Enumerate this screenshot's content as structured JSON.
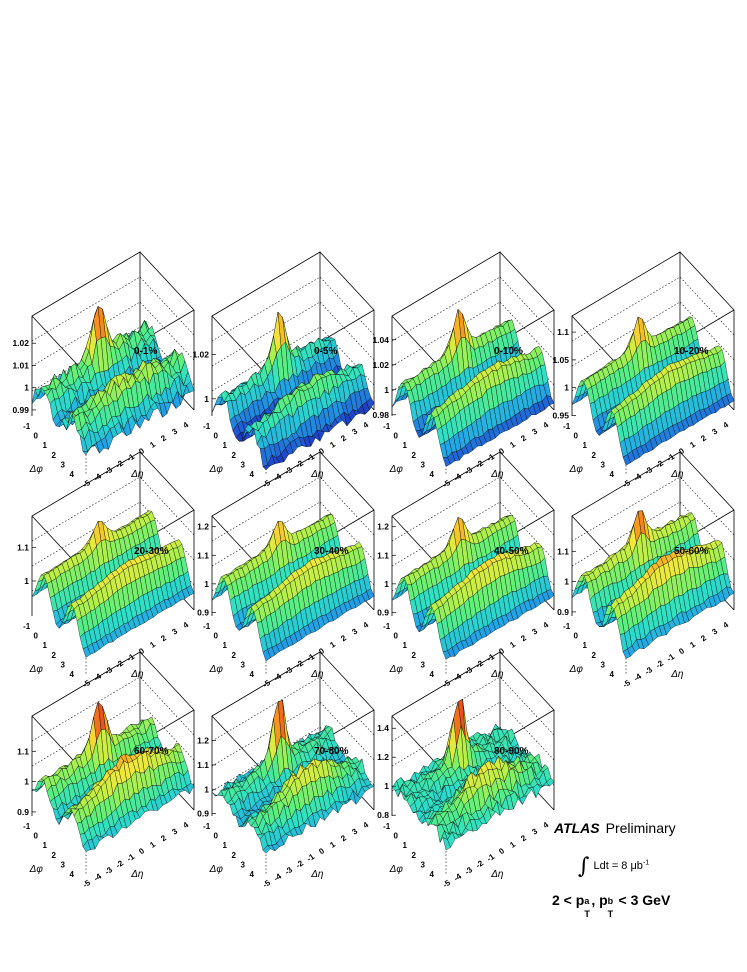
{
  "chart_data": {
    "type": "surface",
    "xlabel": "Δφ",
    "ylabel": "Δη",
    "x_ticks": [
      "-1",
      "0",
      "1",
      "2",
      "3",
      "4"
    ],
    "y_ticks": [
      "-5",
      "-4",
      "-3",
      "-2",
      "-1",
      "0",
      "1",
      "2",
      "3",
      "4"
    ],
    "panels": [
      {
        "label": "0-1%",
        "z_ticks": [
          "0.99",
          "1",
          "1.01",
          "1.02"
        ],
        "zlim": [
          0.985,
          1.03
        ],
        "flow": 0.01,
        "near": 0.022,
        "away": 0.006,
        "noise": 0.003
      },
      {
        "label": "0-5%",
        "z_ticks": [
          "1",
          "1.02"
        ],
        "zlim": [
          0.99,
          1.035
        ],
        "flow": 0.012,
        "near": 0.022,
        "away": 0.006,
        "noise": 0.002
      },
      {
        "label": "0-10%",
        "z_ticks": [
          "0.98",
          "1",
          "1.02",
          "1.04"
        ],
        "zlim": [
          0.975,
          1.055
        ],
        "flow": 0.03,
        "near": 0.03,
        "away": 0.01,
        "noise": 0.0015
      },
      {
        "label": "10-20%",
        "z_ticks": [
          "0.95",
          "1",
          "1.05",
          "1.1"
        ],
        "zlim": [
          0.94,
          1.12
        ],
        "flow": 0.07,
        "near": 0.05,
        "away": 0.02,
        "noise": 0.002
      },
      {
        "label": "20-30%",
        "z_ticks": [
          "1",
          "1.1"
        ],
        "zlim": [
          0.88,
          1.18
        ],
        "flow": 0.11,
        "near": 0.06,
        "away": 0.03,
        "noise": 0.003
      },
      {
        "label": "30-40%",
        "z_ticks": [
          "0.9",
          "1",
          "1.1",
          "1.2"
        ],
        "zlim": [
          0.87,
          1.22
        ],
        "flow": 0.13,
        "near": 0.08,
        "away": 0.04,
        "noise": 0.004
      },
      {
        "label": "40-50%",
        "z_ticks": [
          "0.9",
          "1",
          "1.1",
          "1.2"
        ],
        "zlim": [
          0.87,
          1.22
        ],
        "flow": 0.13,
        "near": 0.09,
        "away": 0.05,
        "noise": 0.005
      },
      {
        "label": "50-60%",
        "z_ticks": [
          "0.9",
          "1",
          "1.1"
        ],
        "zlim": [
          0.87,
          1.2
        ],
        "flow": 0.12,
        "near": 0.1,
        "away": 0.06,
        "noise": 0.007
      },
      {
        "label": "60-70%",
        "z_ticks": [
          "0.9",
          "1",
          "1.1"
        ],
        "zlim": [
          0.87,
          1.2
        ],
        "flow": 0.08,
        "near": 0.15,
        "away": 0.08,
        "noise": 0.012
      },
      {
        "label": "70-80%",
        "z_ticks": [
          "0.9",
          "1",
          "1.1",
          "1.2"
        ],
        "zlim": [
          0.87,
          1.28
        ],
        "flow": 0.05,
        "near": 0.25,
        "away": 0.12,
        "noise": 0.02
      },
      {
        "label": "80-90%",
        "z_ticks": [
          "0.8",
          "1",
          "1.2",
          "1.4"
        ],
        "zlim": [
          0.76,
          1.45
        ],
        "flow": 0.03,
        "near": 0.45,
        "away": 0.2,
        "noise": 0.04
      }
    ]
  },
  "legend": {
    "experiment": "ATLAS",
    "status": "Preliminary",
    "lumi_integral": "∫",
    "lumi_text": "Ldt = 8 μb",
    "lumi_exp": "-1",
    "pt_range_text": "2 < p_T^a, p_T^b < 3 GeV"
  },
  "colors": {
    "palette": [
      "#1a0a78",
      "#1f4bd0",
      "#22a6e6",
      "#2ce0c8",
      "#5ef07a",
      "#b8f048",
      "#f2e83a",
      "#f7961e",
      "#e2361c",
      "#8a0a0a"
    ]
  }
}
